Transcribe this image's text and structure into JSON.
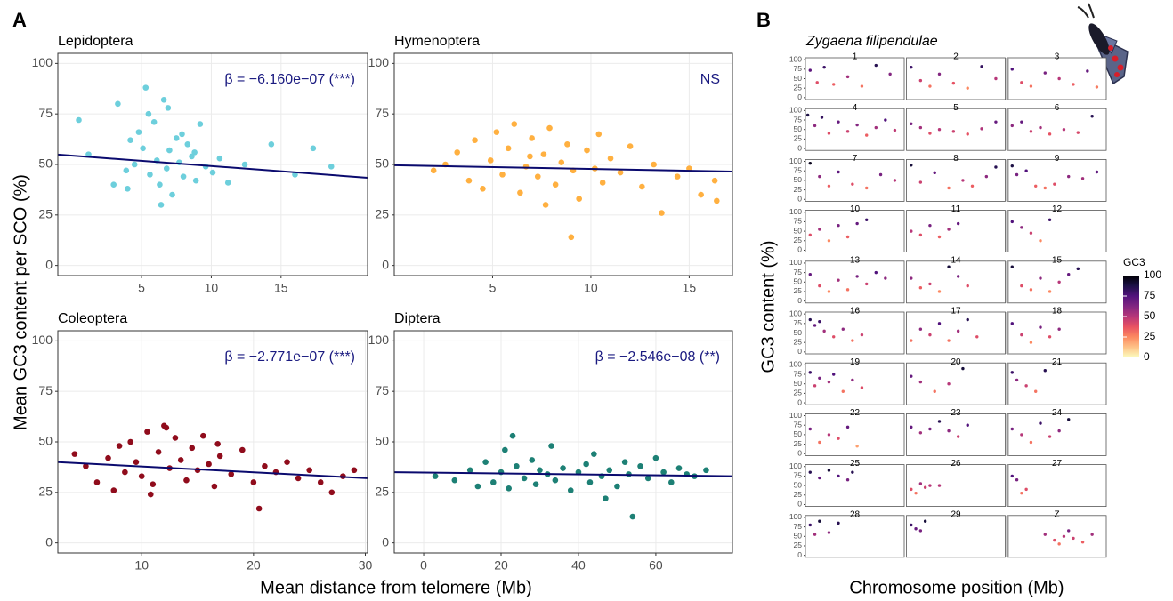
{
  "panel_a": {
    "label": "A",
    "y_label": "Mean GC3 content per SCO (%)",
    "x_label": "Mean distance from telomere (Mb)"
  },
  "panel_b": {
    "label": "B",
    "title": "Zygaena filipendulae",
    "y_label": "GC3 content (%)",
    "x_label": "Chromosome position (Mb)"
  },
  "chart_data": [
    {
      "type": "scatter",
      "title": "Lepidoptera",
      "annotation": "β = −6.160e−07 (***)",
      "color": "#6dcfdc",
      "annotation_color": "#1a1a80",
      "x": [
        0.5,
        1.2,
        3.3,
        3.9,
        4.2,
        4.5,
        4.8,
        5.1,
        5.3,
        5.6,
        5.9,
        6.1,
        6.3,
        6.6,
        6.8,
        7.0,
        7.2,
        7.5,
        7.7,
        8.0,
        8.3,
        8.6,
        8.9,
        9.2,
        9.6,
        10.1,
        10.6,
        11.2,
        12.4,
        14.3,
        16.0,
        17.3,
        18.6,
        6.4,
        5.5,
        7.9,
        4.0,
        8.8,
        6.9,
        3.0
      ],
      "values": [
        72,
        55,
        80,
        47,
        62,
        50,
        66,
        58,
        88,
        45,
        71,
        52,
        40,
        82,
        48,
        57,
        35,
        63,
        51,
        44,
        60,
        54,
        42,
        70,
        49,
        46,
        53,
        41,
        50,
        60,
        45,
        58,
        49,
        30,
        75,
        65,
        38,
        56,
        78,
        40
      ],
      "trend": {
        "color": "#0a0a6e",
        "x": [
          -1,
          21.2
        ],
        "values": [
          54.9,
          43.4
        ]
      },
      "xlim": [
        -1,
        21.2
      ],
      "ylim": [
        -5,
        105
      ],
      "xticks": [
        5,
        10,
        15
      ],
      "yticks": [
        0,
        25,
        50,
        75,
        100
      ],
      "grid": true
    },
    {
      "type": "scatter",
      "title": "Hymenoptera",
      "annotation": "NS",
      "color": "#ffb040",
      "annotation_color": "#1a1a80",
      "x": [
        2.0,
        2.6,
        3.2,
        3.8,
        4.1,
        4.5,
        4.9,
        5.2,
        5.5,
        5.8,
        6.1,
        6.4,
        6.7,
        7.0,
        7.3,
        7.6,
        7.9,
        8.2,
        8.5,
        8.8,
        9.1,
        9.4,
        9.8,
        10.2,
        10.6,
        11.0,
        11.5,
        12.0,
        12.6,
        13.2,
        13.6,
        14.4,
        15.0,
        15.6,
        16.3,
        9.0,
        6.9,
        7.7,
        10.4,
        16.4
      ],
      "values": [
        47,
        50,
        56,
        42,
        62,
        38,
        52,
        66,
        45,
        58,
        70,
        36,
        49,
        63,
        44,
        55,
        68,
        40,
        51,
        60,
        47,
        33,
        57,
        48,
        41,
        53,
        46,
        59,
        39,
        50,
        26,
        44,
        48,
        35,
        42,
        14,
        54,
        30,
        65,
        32
      ],
      "trend": {
        "color": "#0a0a6e",
        "x": [
          0,
          17.2
        ],
        "values": [
          49.6,
          46.5
        ]
      },
      "xlim": [
        0,
        17.2
      ],
      "ylim": [
        -5,
        105
      ],
      "xticks": [
        5,
        10,
        15
      ],
      "yticks": [
        0,
        25,
        50,
        75,
        100
      ],
      "grid": true
    },
    {
      "type": "scatter",
      "title": "Coleoptera",
      "annotation": "β = −2.771e−07 (***)",
      "color": "#900c1c",
      "annotation_color": "#1a1a80",
      "x": [
        4,
        5,
        6,
        7,
        7.5,
        8,
        8.5,
        9,
        9.5,
        10,
        10.5,
        11,
        11.5,
        12,
        12.5,
        13,
        13.5,
        14,
        14.5,
        15,
        15.5,
        16,
        16.5,
        17,
        18,
        19,
        20,
        21,
        22,
        23,
        24,
        25,
        26,
        27,
        28,
        29,
        12.2,
        10.8,
        16.8,
        20.5
      ],
      "values": [
        44,
        38,
        30,
        42,
        26,
        48,
        35,
        50,
        40,
        33,
        55,
        29,
        45,
        58,
        37,
        52,
        41,
        31,
        47,
        36,
        53,
        39,
        28,
        43,
        34,
        46,
        30,
        38,
        35,
        40,
        32,
        36,
        30,
        25,
        33,
        36,
        57,
        24,
        49,
        17
      ],
      "trend": {
        "color": "#0a0a6e",
        "x": [
          2.5,
          30.2
        ],
        "values": [
          40,
          32
        ]
      },
      "xlim": [
        2.5,
        30.2
      ],
      "ylim": [
        -5,
        105
      ],
      "xticks": [
        10,
        20,
        30
      ],
      "yticks": [
        0,
        25,
        50,
        75,
        100
      ],
      "grid": true
    },
    {
      "type": "scatter",
      "title": "Diptera",
      "annotation": "β = −2.546e−08 (**)",
      "color": "#1d8075",
      "annotation_color": "#1a1a80",
      "x": [
        3,
        8,
        12,
        14,
        16,
        18,
        20,
        22,
        23,
        24,
        26,
        28,
        29,
        30,
        32,
        33,
        34,
        36,
        38,
        40,
        42,
        43,
        44,
        46,
        48,
        50,
        52,
        53,
        54,
        56,
        58,
        60,
        62,
        64,
        66,
        68,
        70,
        73,
        21,
        47
      ],
      "values": [
        33,
        31,
        36,
        28,
        40,
        30,
        35,
        27,
        53,
        38,
        32,
        41,
        29,
        36,
        34,
        48,
        31,
        37,
        26,
        35,
        39,
        30,
        44,
        33,
        36,
        28,
        40,
        34,
        13,
        38,
        32,
        42,
        35,
        30,
        37,
        34,
        33,
        36,
        46,
        22
      ],
      "trend": {
        "color": "#0a0a6e",
        "x": [
          -7.6,
          79.8
        ],
        "values": [
          35,
          33
        ]
      },
      "xlim": [
        -7.6,
        79.8
      ],
      "ylim": [
        -5,
        105
      ],
      "xticks": [
        0,
        20,
        40,
        60
      ],
      "yticks": [
        0,
        25,
        50,
        75,
        100
      ],
      "grid": true
    },
    {
      "type": "facet_scatter",
      "xlim": [
        0,
        21
      ],
      "ylim": [
        -5,
        105
      ],
      "yticks": [
        0,
        25,
        50,
        75,
        100
      ],
      "columns": 3,
      "colorbar": {
        "title": "GC3",
        "range": [
          0,
          100
        ],
        "ticks": [
          100,
          75,
          50,
          25,
          0
        ],
        "colors": [
          "#fcfdbf",
          "#fec287",
          "#fc8961",
          "#e85362",
          "#b73779",
          "#822681",
          "#51127c",
          "#1d1147",
          "#000004"
        ]
      },
      "facets": [
        {
          "title": "1",
          "x": [
            1,
            2.5,
            4,
            6,
            9,
            12,
            15,
            18
          ],
          "values": [
            72,
            40,
            80,
            35,
            55,
            30,
            85,
            62
          ]
        },
        {
          "title": "2",
          "x": [
            1,
            3,
            5,
            7,
            10,
            13,
            16,
            19
          ],
          "values": [
            80,
            45,
            30,
            62,
            38,
            25,
            82,
            50
          ]
        },
        {
          "title": "3",
          "x": [
            1,
            3,
            5,
            8,
            11,
            14,
            17,
            19
          ],
          "values": [
            75,
            40,
            30,
            65,
            50,
            35,
            70,
            28
          ]
        },
        {
          "title": "4",
          "x": [
            0.5,
            2,
            3.5,
            5,
            7,
            9,
            11,
            13,
            15,
            17,
            19
          ],
          "values": [
            88,
            60,
            82,
            40,
            70,
            45,
            62,
            35,
            55,
            75,
            48
          ]
        },
        {
          "title": "5",
          "x": [
            1,
            3,
            5,
            7,
            10,
            13,
            16,
            19
          ],
          "values": [
            65,
            55,
            40,
            50,
            45,
            38,
            52,
            70
          ]
        },
        {
          "title": "6",
          "x": [
            1,
            3,
            5,
            7,
            9,
            12,
            15,
            18
          ],
          "values": [
            60,
            70,
            45,
            55,
            38,
            50,
            42,
            85
          ]
        },
        {
          "title": "7",
          "x": [
            1,
            3,
            5,
            7,
            10,
            13,
            16,
            19
          ],
          "values": [
            95,
            60,
            35,
            72,
            40,
            30,
            65,
            50
          ]
        },
        {
          "title": "8",
          "x": [
            1,
            3,
            6,
            9,
            12,
            14,
            17,
            19
          ],
          "values": [
            90,
            45,
            70,
            30,
            50,
            35,
            60,
            85
          ]
        },
        {
          "title": "9",
          "x": [
            1,
            2,
            4,
            6,
            8,
            10,
            13,
            16,
            19
          ],
          "values": [
            88,
            65,
            75,
            35,
            30,
            40,
            60,
            55,
            72
          ]
        },
        {
          "title": "10",
          "x": [
            1,
            3,
            5,
            7,
            9,
            11,
            13
          ],
          "values": [
            40,
            55,
            25,
            65,
            35,
            70,
            80
          ]
        },
        {
          "title": "11",
          "x": [
            1,
            3,
            5,
            7,
            9,
            11
          ],
          "values": [
            50,
            40,
            65,
            35,
            55,
            70
          ]
        },
        {
          "title": "12",
          "x": [
            1,
            3,
            5,
            7,
            9
          ],
          "values": [
            75,
            60,
            45,
            25,
            80
          ]
        },
        {
          "title": "13",
          "x": [
            1,
            3,
            5,
            7,
            9,
            11,
            13,
            15,
            17
          ],
          "values": [
            70,
            40,
            25,
            55,
            30,
            65,
            45,
            75,
            60
          ]
        },
        {
          "title": "14",
          "x": [
            1,
            3,
            5,
            7,
            9,
            11,
            13
          ],
          "values": [
            60,
            35,
            45,
            25,
            90,
            65,
            40
          ]
        },
        {
          "title": "15",
          "x": [
            1,
            3,
            5,
            7,
            9,
            11,
            13,
            15
          ],
          "values": [
            90,
            40,
            30,
            60,
            25,
            50,
            70,
            85
          ]
        },
        {
          "title": "16",
          "x": [
            1,
            2,
            3,
            4,
            6,
            8,
            10,
            12
          ],
          "values": [
            85,
            70,
            80,
            55,
            40,
            60,
            30,
            45
          ]
        },
        {
          "title": "17",
          "x": [
            1,
            3,
            5,
            7,
            9,
            11,
            13,
            15
          ],
          "values": [
            30,
            60,
            45,
            75,
            30,
            55,
            85,
            40
          ]
        },
        {
          "title": "18",
          "x": [
            1,
            3,
            5,
            7,
            9,
            11
          ],
          "values": [
            75,
            45,
            25,
            65,
            40,
            60
          ]
        },
        {
          "title": "19",
          "x": [
            1,
            2,
            3,
            5,
            6,
            8,
            10,
            12
          ],
          "values": [
            80,
            45,
            65,
            55,
            75,
            30,
            60,
            40
          ]
        },
        {
          "title": "20",
          "x": [
            1,
            3,
            6,
            9,
            12
          ],
          "values": [
            70,
            55,
            30,
            50,
            90
          ]
        },
        {
          "title": "21",
          "x": [
            1,
            2,
            4,
            6,
            8
          ],
          "values": [
            80,
            60,
            45,
            30,
            85
          ]
        },
        {
          "title": "22",
          "x": [
            1,
            3,
            5,
            7,
            9,
            11
          ],
          "values": [
            65,
            30,
            50,
            40,
            70,
            20
          ]
        },
        {
          "title": "23",
          "x": [
            1,
            3,
            5,
            7,
            9,
            11,
            13
          ],
          "values": [
            70,
            55,
            65,
            85,
            60,
            45,
            75
          ]
        },
        {
          "title": "24",
          "x": [
            1,
            3,
            5,
            7,
            9,
            11,
            13
          ],
          "values": [
            65,
            50,
            30,
            80,
            45,
            60,
            90
          ]
        },
        {
          "title": "25",
          "x": [
            1,
            3,
            5,
            7,
            9,
            10
          ],
          "values": [
            85,
            70,
            90,
            75,
            65,
            85
          ]
        },
        {
          "title": "26",
          "x": [
            1,
            2,
            3,
            4,
            5,
            7
          ],
          "values": [
            40,
            30,
            55,
            45,
            50,
            50
          ]
        },
        {
          "title": "27",
          "x": [
            1,
            2,
            3,
            4
          ],
          "values": [
            75,
            65,
            30,
            40
          ]
        },
        {
          "title": "28",
          "x": [
            1,
            2,
            3,
            5,
            7
          ],
          "values": [
            80,
            55,
            90,
            60,
            85
          ]
        },
        {
          "title": "29",
          "x": [
            1,
            2,
            3,
            4
          ],
          "values": [
            80,
            70,
            65,
            90
          ]
        },
        {
          "title": "Z",
          "x": [
            8,
            10,
            11,
            12,
            13,
            14,
            16,
            18
          ],
          "values": [
            55,
            40,
            30,
            50,
            65,
            45,
            35,
            55
          ]
        }
      ]
    }
  ]
}
